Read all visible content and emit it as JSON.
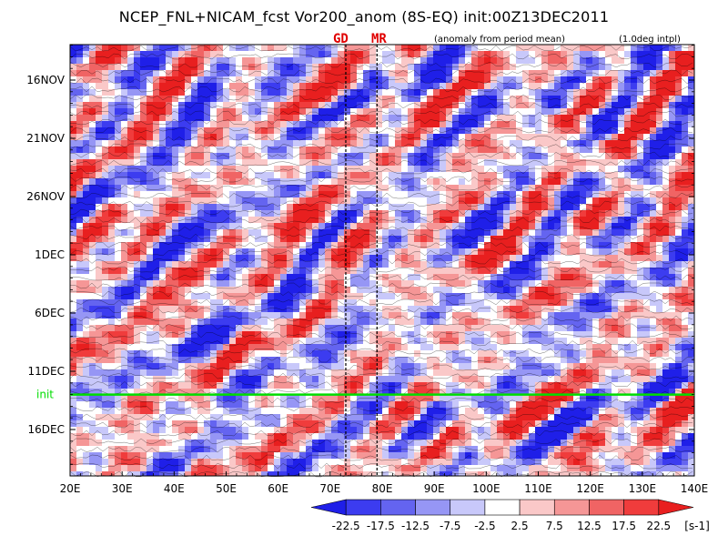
{
  "chart_data": {
    "type": "heatmap",
    "title": "NCEP_FNL+NICAM_fcst Vor200_anom (8S-EQ) init:00Z13DEC2011",
    "note_left": "(anomaly from period mean)",
    "note_right": "(1.0deg intpl)",
    "x_ticks": [
      "20E",
      "30E",
      "40E",
      "50E",
      "60E",
      "70E",
      "80E",
      "90E",
      "100E",
      "110E",
      "120E",
      "130E",
      "140E"
    ],
    "x_range": [
      20,
      140
    ],
    "y_ticks": [
      "16NOV",
      "21NOV",
      "26NOV",
      "1DEC",
      "6DEC",
      "11DEC",
      "16DEC"
    ],
    "y_range_days": [
      0,
      35
    ],
    "init_label": "init",
    "init_color": "#00dd00",
    "markers": [
      {
        "label": "GD",
        "lon": 73
      },
      {
        "label": "MR",
        "lon": 79
      }
    ],
    "colorbar": {
      "levels": [
        "-22.5",
        "-17.5",
        "-12.5",
        "-7.5",
        "-2.5",
        "2.5",
        "7.5",
        "12.5",
        "17.5",
        "22.5"
      ],
      "unit": "[s-1]",
      "colors": [
        "#1f1fe8",
        "#3c3cf0",
        "#6464f0",
        "#9696f5",
        "#c8c8fa",
        "#ffffff",
        "#fac8c8",
        "#f59696",
        "#f06464",
        "#f03c3c",
        "#e81f1f"
      ]
    }
  }
}
